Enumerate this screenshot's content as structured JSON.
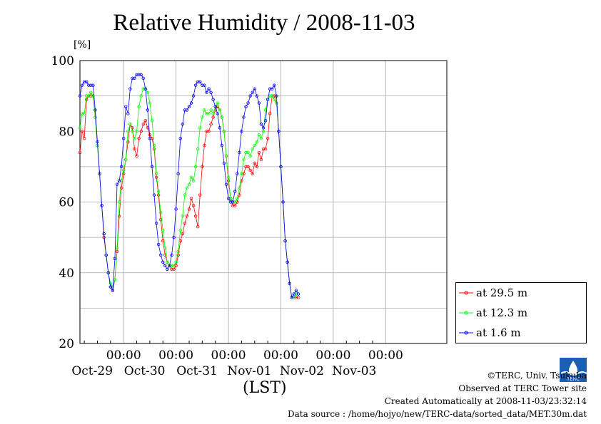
{
  "chart_data": {
    "type": "line",
    "title": "Relative Humidity / 2008-11-03",
    "ylabel": "[%]",
    "xlabel": "(LST)",
    "ylim": [
      20,
      100
    ],
    "yticks": [
      20,
      40,
      60,
      80,
      100
    ],
    "x_range_days": [
      "2008-10-28T04:00",
      "2008-11-04T00:00"
    ],
    "xticks": [
      {
        "time": "00:00",
        "date": "Oct-29"
      },
      {
        "time": "00:00",
        "date": "Oct-30"
      },
      {
        "time": "00:00",
        "date": "Oct-31"
      },
      {
        "time": "00:00",
        "date": "Nov-01"
      },
      {
        "time": "00:00",
        "date": "Nov-02"
      },
      {
        "time": "00:00",
        "date": "Nov-03"
      }
    ],
    "grid": true,
    "legend_position": "bottom-right, outside plot",
    "x_units": "hours from 2008-10-28 04:00 LST",
    "series": [
      {
        "name": "at 29.5 m",
        "color": "#ff0000",
        "points": [
          [
            0,
            74
          ],
          [
            1,
            80
          ],
          [
            2,
            78
          ],
          [
            3,
            89
          ],
          [
            4,
            90
          ],
          [
            5,
            90
          ],
          [
            6,
            90
          ],
          [
            7,
            84
          ],
          [
            8,
            76
          ],
          [
            9,
            68
          ],
          [
            10,
            59
          ],
          [
            11,
            50
          ],
          [
            12,
            45
          ],
          [
            13,
            40
          ],
          [
            14,
            36
          ],
          [
            15,
            35
          ],
          [
            16,
            38
          ],
          [
            17,
            46
          ],
          [
            18,
            56
          ],
          [
            19,
            64
          ],
          [
            20,
            68
          ],
          [
            21,
            72
          ],
          [
            22,
            77
          ],
          [
            23,
            82
          ],
          [
            24,
            81
          ],
          [
            25,
            75
          ],
          [
            26,
            73
          ],
          [
            27,
            78
          ],
          [
            28,
            80
          ],
          [
            29,
            82
          ],
          [
            30,
            83
          ],
          [
            31,
            81
          ],
          [
            32,
            79
          ],
          [
            33,
            78
          ],
          [
            34,
            75
          ],
          [
            35,
            67
          ],
          [
            36,
            62
          ],
          [
            37,
            55
          ],
          [
            38,
            49
          ],
          [
            39,
            45
          ],
          [
            40,
            43
          ],
          [
            41,
            42
          ],
          [
            42,
            41
          ],
          [
            43,
            41
          ],
          [
            44,
            42
          ],
          [
            45,
            45
          ],
          [
            46,
            49
          ],
          [
            47,
            51
          ],
          [
            48,
            54
          ],
          [
            49,
            56
          ],
          [
            50,
            58
          ],
          [
            51,
            61
          ],
          [
            52,
            59
          ],
          [
            53,
            56
          ],
          [
            54,
            53
          ],
          [
            55,
            62
          ],
          [
            56,
            70
          ],
          [
            57,
            76
          ],
          [
            58,
            80
          ],
          [
            59,
            80
          ],
          [
            60,
            82
          ],
          [
            61,
            84
          ],
          [
            62,
            86
          ],
          [
            63,
            87
          ],
          [
            64,
            86
          ],
          [
            65,
            84
          ],
          [
            66,
            80
          ],
          [
            67,
            73
          ],
          [
            68,
            66
          ],
          [
            69,
            61
          ],
          [
            70,
            59
          ],
          [
            71,
            59
          ],
          [
            72,
            60
          ],
          [
            73,
            62
          ],
          [
            74,
            66
          ],
          [
            75,
            68
          ],
          [
            76,
            70
          ],
          [
            77,
            70
          ],
          [
            78,
            69
          ],
          [
            79,
            68
          ],
          [
            80,
            71
          ],
          [
            81,
            70
          ],
          [
            82,
            74
          ],
          [
            83,
            72
          ],
          [
            84,
            75
          ],
          [
            85,
            75
          ],
          [
            86,
            78
          ],
          [
            87,
            85
          ],
          [
            88,
            90
          ],
          [
            89,
            90
          ],
          [
            90,
            88
          ],
          [
            91,
            80
          ],
          [
            92,
            70
          ],
          [
            93,
            60
          ],
          [
            94,
            49
          ],
          [
            95,
            43
          ],
          [
            96,
            37
          ],
          [
            97,
            33
          ],
          [
            98,
            33
          ],
          [
            99,
            33
          ],
          [
            100,
            33
          ]
        ]
      },
      {
        "name": "at 12.3 m",
        "color": "#00ff00",
        "points": [
          [
            0,
            81
          ],
          [
            1,
            85
          ],
          [
            2,
            85
          ],
          [
            3,
            90
          ],
          [
            4,
            90
          ],
          [
            5,
            91
          ],
          [
            6,
            90
          ],
          [
            7,
            84
          ],
          [
            8,
            76
          ],
          [
            9,
            68
          ],
          [
            10,
            59
          ],
          [
            11,
            51
          ],
          [
            12,
            45
          ],
          [
            13,
            40
          ],
          [
            14,
            37
          ],
          [
            15,
            36
          ],
          [
            16,
            38
          ],
          [
            17,
            47
          ],
          [
            18,
            60
          ],
          [
            19,
            66
          ],
          [
            20,
            69
          ],
          [
            21,
            72
          ],
          [
            22,
            80
          ],
          [
            23,
            82
          ],
          [
            24,
            80
          ],
          [
            25,
            78
          ],
          [
            26,
            80
          ],
          [
            27,
            87
          ],
          [
            28,
            90
          ],
          [
            29,
            92
          ],
          [
            30,
            92
          ],
          [
            31,
            91
          ],
          [
            32,
            88
          ],
          [
            33,
            83
          ],
          [
            34,
            76
          ],
          [
            35,
            68
          ],
          [
            36,
            63
          ],
          [
            37,
            57
          ],
          [
            38,
            52
          ],
          [
            39,
            47
          ],
          [
            40,
            43
          ],
          [
            41,
            42
          ],
          [
            42,
            42
          ],
          [
            43,
            42
          ],
          [
            44,
            43
          ],
          [
            45,
            46
          ],
          [
            46,
            52
          ],
          [
            47,
            56
          ],
          [
            48,
            62
          ],
          [
            49,
            64
          ],
          [
            50,
            65
          ],
          [
            51,
            67
          ],
          [
            52,
            66
          ],
          [
            53,
            70
          ],
          [
            54,
            75
          ],
          [
            55,
            81
          ],
          [
            56,
            84
          ],
          [
            57,
            86
          ],
          [
            58,
            85
          ],
          [
            59,
            85
          ],
          [
            60,
            86
          ],
          [
            61,
            85
          ],
          [
            62,
            87
          ],
          [
            63,
            88
          ],
          [
            64,
            86
          ],
          [
            65,
            84
          ],
          [
            66,
            80
          ],
          [
            67,
            73
          ],
          [
            68,
            67
          ],
          [
            69,
            61
          ],
          [
            70,
            60
          ],
          [
            71,
            60
          ],
          [
            72,
            61
          ],
          [
            73,
            64
          ],
          [
            74,
            68
          ],
          [
            75,
            72
          ],
          [
            76,
            74
          ],
          [
            77,
            74
          ],
          [
            78,
            73
          ],
          [
            79,
            75
          ],
          [
            80,
            76
          ],
          [
            81,
            77
          ],
          [
            82,
            79
          ],
          [
            83,
            78
          ],
          [
            84,
            80
          ],
          [
            85,
            86
          ],
          [
            86,
            89
          ],
          [
            87,
            90
          ],
          [
            88,
            90
          ],
          [
            89,
            89
          ],
          [
            90,
            88
          ],
          [
            91,
            80
          ],
          [
            92,
            70
          ],
          [
            93,
            60
          ],
          [
            94,
            49
          ],
          [
            95,
            43
          ],
          [
            96,
            37
          ],
          [
            97,
            33
          ],
          [
            98,
            33
          ],
          [
            99,
            34
          ],
          [
            100,
            34
          ]
        ]
      },
      {
        "name": "at 1.6 m",
        "color": "#0000ff",
        "points": [
          [
            0,
            90
          ],
          [
            1,
            93
          ],
          [
            2,
            94
          ],
          [
            3,
            94
          ],
          [
            4,
            93
          ],
          [
            5,
            93
          ],
          [
            6,
            93
          ],
          [
            7,
            86
          ],
          [
            8,
            77
          ],
          [
            9,
            68
          ],
          [
            10,
            59
          ],
          [
            11,
            51
          ],
          [
            12,
            45
          ],
          [
            13,
            40
          ],
          [
            14,
            36
          ],
          [
            15,
            35
          ],
          [
            16,
            44
          ],
          [
            17,
            65
          ],
          [
            18,
            66
          ],
          [
            19,
            70
          ],
          [
            20,
            78
          ],
          [
            21,
            87
          ],
          [
            22,
            85
          ],
          [
            23,
            92
          ],
          [
            24,
            95
          ],
          [
            25,
            95
          ],
          [
            26,
            96
          ],
          [
            27,
            96
          ],
          [
            28,
            96
          ],
          [
            29,
            95
          ],
          [
            30,
            92
          ],
          [
            31,
            86
          ],
          [
            32,
            78
          ],
          [
            33,
            70
          ],
          [
            34,
            62
          ],
          [
            35,
            54
          ],
          [
            36,
            48
          ],
          [
            37,
            45
          ],
          [
            38,
            43
          ],
          [
            39,
            42
          ],
          [
            40,
            41
          ],
          [
            41,
            42
          ],
          [
            42,
            45
          ],
          [
            43,
            50
          ],
          [
            44,
            58
          ],
          [
            45,
            68
          ],
          [
            46,
            78
          ],
          [
            47,
            82
          ],
          [
            48,
            86
          ],
          [
            49,
            86
          ],
          [
            50,
            87
          ],
          [
            51,
            88
          ],
          [
            52,
            90
          ],
          [
            53,
            93
          ],
          [
            54,
            94
          ],
          [
            55,
            94
          ],
          [
            56,
            93
          ],
          [
            57,
            93
          ],
          [
            58,
            91
          ],
          [
            59,
            92
          ],
          [
            60,
            91
          ],
          [
            61,
            89
          ],
          [
            62,
            87
          ],
          [
            63,
            85
          ],
          [
            64,
            81
          ],
          [
            65,
            76
          ],
          [
            66,
            71
          ],
          [
            67,
            65
          ],
          [
            68,
            61
          ],
          [
            69,
            60
          ],
          [
            70,
            60
          ],
          [
            71,
            63
          ],
          [
            72,
            68
          ],
          [
            73,
            74
          ],
          [
            74,
            80
          ],
          [
            75,
            84
          ],
          [
            76,
            87
          ],
          [
            77,
            88
          ],
          [
            78,
            90
          ],
          [
            79,
            91
          ],
          [
            80,
            92
          ],
          [
            81,
            90
          ],
          [
            82,
            88
          ],
          [
            83,
            82
          ],
          [
            84,
            81
          ],
          [
            85,
            83
          ],
          [
            86,
            89
          ],
          [
            87,
            92
          ],
          [
            88,
            92
          ],
          [
            89,
            93
          ],
          [
            90,
            90
          ],
          [
            91,
            80
          ],
          [
            92,
            70
          ],
          [
            93,
            60
          ],
          [
            94,
            49
          ],
          [
            95,
            43
          ],
          [
            96,
            37
          ],
          [
            97,
            33
          ],
          [
            98,
            34
          ],
          [
            99,
            35
          ],
          [
            100,
            34
          ]
        ]
      }
    ]
  },
  "credits": {
    "copyright": "©TERC, Univ. Tsukuba",
    "observed": "Observed at TERC Tower site",
    "created": "Created Automatically at 2008-11-03/23:32:14",
    "source": "Data source : /home/hojyo/new/TERC-data/sorted_data/MET.30m.dat"
  },
  "logo": {
    "icon": "terc-logo-icon",
    "text": "TERC",
    "color": "#1a5fb4"
  }
}
